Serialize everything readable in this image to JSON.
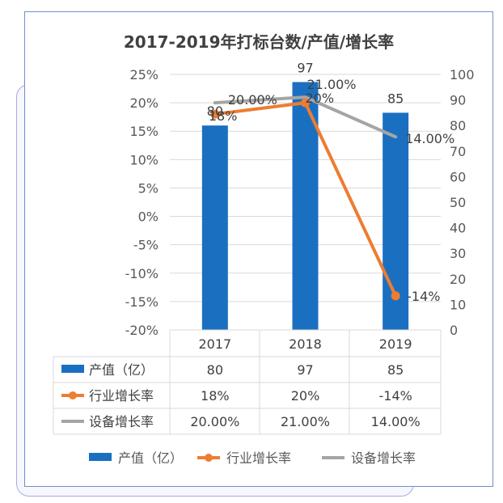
{
  "colors": {
    "bar": "#1b6fc1",
    "industry": "#ed7d31",
    "equipment": "#a5a5a5",
    "grid": "#d9d9d9",
    "border": "#6f8fd0"
  },
  "chart_data": {
    "type": "bar",
    "title": "2017-2019年打标台数/产值/增长率",
    "categories": [
      "2017",
      "2018",
      "2019"
    ],
    "left_axis": {
      "ticks": [
        "25%",
        "20%",
        "15%",
        "10%",
        "5%",
        "0%",
        "-5%",
        "-10%",
        "-15%",
        "-20%"
      ],
      "range": [
        -20,
        25
      ]
    },
    "right_axis": {
      "ticks": [
        "100",
        "90",
        "80",
        "70",
        "60",
        "50",
        "40",
        "30",
        "20",
        "10",
        "0"
      ],
      "range": [
        0,
        100
      ]
    },
    "series": [
      {
        "name": "产值（亿）",
        "kind": "bar",
        "axis": "right",
        "values": [
          80,
          97,
          85
        ],
        "labels": [
          "80",
          "97",
          "85"
        ]
      },
      {
        "name": "行业增长率",
        "kind": "line",
        "axis": "left",
        "values": [
          18,
          20,
          -14
        ],
        "labels": [
          "18%",
          "20%",
          "-14%"
        ]
      },
      {
        "name": "设备增长率",
        "kind": "line",
        "axis": "left",
        "values": [
          20,
          21,
          14
        ],
        "labels": [
          "20.00%",
          "21.00%",
          "14.00%"
        ]
      }
    ],
    "legend_position": "bottom",
    "grid": true
  }
}
